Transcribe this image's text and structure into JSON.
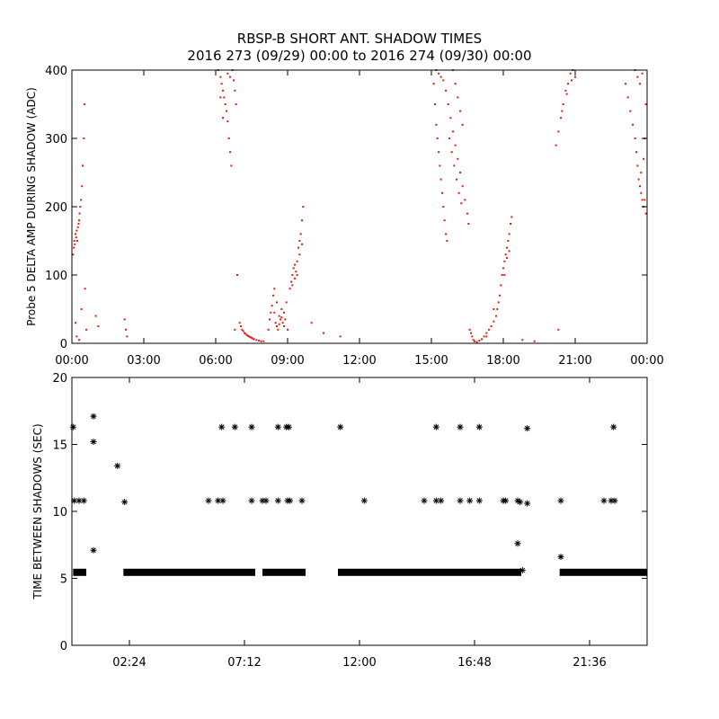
{
  "figure": {
    "title_line1": "RBSP-B SHORT ANT. SHADOW TIMES",
    "title_line2": "2016 273 (09/29) 00:00 to 2016 274 (09/30) 00:00"
  },
  "colors": {
    "top_points": "#e0200e",
    "bottom_points": "#000000",
    "axes": "#000000"
  },
  "chart_data": [
    {
      "type": "scatter",
      "ylabel": "Probe 5 DELTA AMP DURING SHADOW (ADC)",
      "xlim": [
        0,
        24
      ],
      "ylim": [
        0,
        400
      ],
      "x_unit": "hours",
      "xticks": [
        {
          "v": 0,
          "label": "00:00"
        },
        {
          "v": 3,
          "label": "03:00"
        },
        {
          "v": 6,
          "label": "06:00"
        },
        {
          "v": 9,
          "label": "09:00"
        },
        {
          "v": 12,
          "label": "12:00"
        },
        {
          "v": 15,
          "label": "15:00"
        },
        {
          "v": 18,
          "label": "18:00"
        },
        {
          "v": 21,
          "label": "21:00"
        },
        {
          "v": 24,
          "label": "00:00"
        }
      ],
      "yticks": [
        {
          "v": 0,
          "label": "0"
        },
        {
          "v": 100,
          "label": "100"
        },
        {
          "v": 200,
          "label": "200"
        },
        {
          "v": 300,
          "label": "300"
        },
        {
          "v": 400,
          "label": "400"
        }
      ],
      "points": [
        [
          0.05,
          130
        ],
        [
          0.08,
          140
        ],
        [
          0.1,
          150
        ],
        [
          0.12,
          145
        ],
        [
          0.15,
          160
        ],
        [
          0.18,
          155
        ],
        [
          0.2,
          165
        ],
        [
          0.22,
          150
        ],
        [
          0.25,
          170
        ],
        [
          0.28,
          175
        ],
        [
          0.3,
          180
        ],
        [
          0.32,
          190
        ],
        [
          0.35,
          200
        ],
        [
          0.38,
          210
        ],
        [
          0.42,
          230
        ],
        [
          0.45,
          260
        ],
        [
          0.5,
          300
        ],
        [
          0.52,
          350
        ],
        [
          0.55,
          80
        ],
        [
          0.6,
          20
        ],
        [
          0.15,
          30
        ],
        [
          0.2,
          10
        ],
        [
          0.3,
          5
        ],
        [
          0.4,
          50
        ],
        [
          1.0,
          40
        ],
        [
          1.1,
          25
        ],
        [
          2.2,
          35
        ],
        [
          2.25,
          20
        ],
        [
          2.3,
          10
        ],
        [
          6.1,
          400
        ],
        [
          6.2,
          390
        ],
        [
          6.25,
          380
        ],
        [
          6.3,
          370
        ],
        [
          6.35,
          360
        ],
        [
          6.4,
          350
        ],
        [
          6.45,
          340
        ],
        [
          6.5,
          325
        ],
        [
          6.55,
          300
        ],
        [
          6.6,
          280
        ],
        [
          6.65,
          260
        ],
        [
          6.5,
          395
        ],
        [
          6.6,
          390
        ],
        [
          6.7,
          400
        ],
        [
          6.75,
          385
        ],
        [
          6.8,
          370
        ],
        [
          6.85,
          350
        ],
        [
          6.2,
          360
        ],
        [
          6.3,
          330
        ],
        [
          6.8,
          20
        ],
        [
          6.9,
          100
        ],
        [
          7.0,
          30
        ],
        [
          7.05,
          25
        ],
        [
          7.1,
          20
        ],
        [
          7.15,
          18
        ],
        [
          7.2,
          15
        ],
        [
          7.3,
          12
        ],
        [
          7.4,
          10
        ],
        [
          7.5,
          8
        ],
        [
          7.6,
          6
        ],
        [
          7.7,
          5
        ],
        [
          7.8,
          4
        ],
        [
          7.9,
          3
        ],
        [
          8.0,
          3
        ],
        [
          7.25,
          14
        ],
        [
          7.35,
          11
        ],
        [
          7.45,
          9
        ],
        [
          7.55,
          7
        ],
        [
          8.2,
          20
        ],
        [
          8.25,
          35
        ],
        [
          8.3,
          45
        ],
        [
          8.35,
          55
        ],
        [
          8.4,
          70
        ],
        [
          8.45,
          80
        ],
        [
          8.5,
          30
        ],
        [
          8.55,
          25
        ],
        [
          8.6,
          20
        ],
        [
          8.65,
          40
        ],
        [
          8.7,
          35
        ],
        [
          8.75,
          50
        ],
        [
          8.8,
          30
        ],
        [
          8.85,
          25
        ],
        [
          8.9,
          35
        ],
        [
          8.95,
          60
        ],
        [
          9.0,
          20
        ],
        [
          8.45,
          45
        ],
        [
          8.55,
          60
        ],
        [
          8.65,
          28
        ],
        [
          8.75,
          38
        ],
        [
          8.85,
          45
        ],
        [
          9.1,
          80
        ],
        [
          9.15,
          90
        ],
        [
          9.2,
          100
        ],
        [
          9.25,
          110
        ],
        [
          9.3,
          95
        ],
        [
          9.35,
          105
        ],
        [
          9.4,
          120
        ],
        [
          9.45,
          140
        ],
        [
          9.5,
          150
        ],
        [
          9.55,
          160
        ],
        [
          9.6,
          180
        ],
        [
          9.65,
          200
        ],
        [
          9.2,
          85
        ],
        [
          9.3,
          115
        ],
        [
          9.4,
          100
        ],
        [
          9.5,
          130
        ],
        [
          9.6,
          145
        ],
        [
          10.0,
          30
        ],
        [
          10.5,
          15
        ],
        [
          11.2,
          10
        ],
        [
          15.1,
          380
        ],
        [
          15.15,
          350
        ],
        [
          15.2,
          320
        ],
        [
          15.25,
          300
        ],
        [
          15.3,
          280
        ],
        [
          15.35,
          260
        ],
        [
          15.4,
          240
        ],
        [
          15.45,
          220
        ],
        [
          15.5,
          200
        ],
        [
          15.55,
          180
        ],
        [
          15.6,
          160
        ],
        [
          15.65,
          150
        ],
        [
          15.2,
          400
        ],
        [
          15.3,
          395
        ],
        [
          15.4,
          390
        ],
        [
          15.5,
          385
        ],
        [
          15.6,
          370
        ],
        [
          15.7,
          350
        ],
        [
          15.8,
          330
        ],
        [
          15.9,
          310
        ],
        [
          16.0,
          290
        ],
        [
          16.1,
          270
        ],
        [
          16.2,
          250
        ],
        [
          16.3,
          230
        ],
        [
          16.4,
          210
        ],
        [
          16.5,
          190
        ],
        [
          16.55,
          175
        ],
        [
          15.75,
          300
        ],
        [
          15.85,
          280
        ],
        [
          15.95,
          260
        ],
        [
          16.05,
          240
        ],
        [
          16.15,
          220
        ],
        [
          16.25,
          205
        ],
        [
          15.9,
          400
        ],
        [
          16.0,
          380
        ],
        [
          16.1,
          360
        ],
        [
          16.2,
          340
        ],
        [
          16.3,
          320
        ],
        [
          16.6,
          20
        ],
        [
          16.65,
          15
        ],
        [
          16.7,
          10
        ],
        [
          16.75,
          5
        ],
        [
          16.8,
          3
        ],
        [
          16.9,
          2
        ],
        [
          17.0,
          4
        ],
        [
          17.1,
          6
        ],
        [
          17.2,
          10
        ],
        [
          17.3,
          15
        ],
        [
          17.4,
          20
        ],
        [
          17.5,
          25
        ],
        [
          17.6,
          32
        ],
        [
          17.7,
          40
        ],
        [
          17.75,
          50
        ],
        [
          17.8,
          60
        ],
        [
          17.85,
          70
        ],
        [
          17.9,
          85
        ],
        [
          17.95,
          100
        ],
        [
          18.0,
          110
        ],
        [
          18.05,
          120
        ],
        [
          18.1,
          130
        ],
        [
          18.15,
          140
        ],
        [
          18.2,
          150
        ],
        [
          18.25,
          160
        ],
        [
          18.3,
          175
        ],
        [
          18.35,
          185
        ],
        [
          18.05,
          100
        ],
        [
          18.15,
          125
        ],
        [
          18.25,
          135
        ],
        [
          17.3,
          10
        ],
        [
          17.6,
          50
        ],
        [
          18.8,
          5
        ],
        [
          19.3,
          3
        ],
        [
          20.2,
          290
        ],
        [
          20.3,
          310
        ],
        [
          20.4,
          330
        ],
        [
          20.5,
          350
        ],
        [
          20.6,
          370
        ],
        [
          20.7,
          380
        ],
        [
          20.8,
          395
        ],
        [
          20.9,
          400
        ],
        [
          21.0,
          390
        ],
        [
          20.45,
          340
        ],
        [
          20.65,
          365
        ],
        [
          20.85,
          385
        ],
        [
          20.3,
          20
        ],
        [
          23.1,
          380
        ],
        [
          23.2,
          360
        ],
        [
          23.3,
          340
        ],
        [
          23.4,
          320
        ],
        [
          23.5,
          300
        ],
        [
          23.55,
          280
        ],
        [
          23.6,
          260
        ],
        [
          23.65,
          240
        ],
        [
          23.7,
          230
        ],
        [
          23.75,
          220
        ],
        [
          23.8,
          210
        ],
        [
          23.85,
          200
        ],
        [
          23.9,
          210
        ],
        [
          23.95,
          190
        ],
        [
          23.75,
          250
        ],
        [
          23.85,
          270
        ],
        [
          23.9,
          300
        ],
        [
          23.95,
          350
        ],
        [
          23.5,
          400
        ],
        [
          23.6,
          390
        ],
        [
          23.7,
          380
        ],
        [
          23.8,
          395
        ]
      ]
    },
    {
      "type": "scatter",
      "ylabel": "TIME BETWEEN SHADOWS (SEC)",
      "xlim": [
        0,
        24
      ],
      "ylim": [
        0,
        20
      ],
      "x_unit": "hours",
      "xticks": [
        {
          "v": 2.4,
          "label": "02:24"
        },
        {
          "v": 7.2,
          "label": "07:12"
        },
        {
          "v": 12.0,
          "label": "12:00"
        },
        {
          "v": 16.8,
          "label": "16:48"
        },
        {
          "v": 21.6,
          "label": "21:36"
        }
      ],
      "yticks": [
        {
          "v": 0,
          "label": "0"
        },
        {
          "v": 5,
          "label": "5"
        },
        {
          "v": 10,
          "label": "10"
        },
        {
          "v": 15,
          "label": "15"
        },
        {
          "v": 20,
          "label": "20"
        }
      ],
      "baseline_value": 5.45,
      "baseline_segments": [
        [
          0.05,
          0.6
        ],
        [
          2.15,
          7.65
        ],
        [
          7.95,
          9.75
        ],
        [
          11.1,
          18.75
        ],
        [
          20.35,
          24.0
        ]
      ],
      "points": [
        [
          0.05,
          16.3
        ],
        [
          0.1,
          10.8
        ],
        [
          0.3,
          10.8
        ],
        [
          0.5,
          10.8
        ],
        [
          0.9,
          17.1
        ],
        [
          0.9,
          15.2
        ],
        [
          0.9,
          7.1
        ],
        [
          1.9,
          13.4
        ],
        [
          2.2,
          10.7
        ],
        [
          5.7,
          10.8
        ],
        [
          6.1,
          10.8
        ],
        [
          6.25,
          16.3
        ],
        [
          6.3,
          10.8
        ],
        [
          6.8,
          16.3
        ],
        [
          7.5,
          16.3
        ],
        [
          7.5,
          10.8
        ],
        [
          7.95,
          10.8
        ],
        [
          8.1,
          10.8
        ],
        [
          8.6,
          16.3
        ],
        [
          8.6,
          10.8
        ],
        [
          8.95,
          16.3
        ],
        [
          9.0,
          10.8
        ],
        [
          9.05,
          16.3
        ],
        [
          9.1,
          10.8
        ],
        [
          9.6,
          10.8
        ],
        [
          11.2,
          16.3
        ],
        [
          12.2,
          10.8
        ],
        [
          14.7,
          10.8
        ],
        [
          15.2,
          16.3
        ],
        [
          15.2,
          10.8
        ],
        [
          15.4,
          10.8
        ],
        [
          16.2,
          16.3
        ],
        [
          16.2,
          10.8
        ],
        [
          16.6,
          10.8
        ],
        [
          17.0,
          16.3
        ],
        [
          17.0,
          10.8
        ],
        [
          18.0,
          10.8
        ],
        [
          18.1,
          10.8
        ],
        [
          18.6,
          10.8
        ],
        [
          18.7,
          10.7
        ],
        [
          18.6,
          7.6
        ],
        [
          18.8,
          5.6
        ],
        [
          19.0,
          16.2
        ],
        [
          19.0,
          10.6
        ],
        [
          20.4,
          10.8
        ],
        [
          20.4,
          6.6
        ],
        [
          22.2,
          10.8
        ],
        [
          22.5,
          10.8
        ],
        [
          22.6,
          16.3
        ],
        [
          22.65,
          10.8
        ]
      ]
    }
  ]
}
